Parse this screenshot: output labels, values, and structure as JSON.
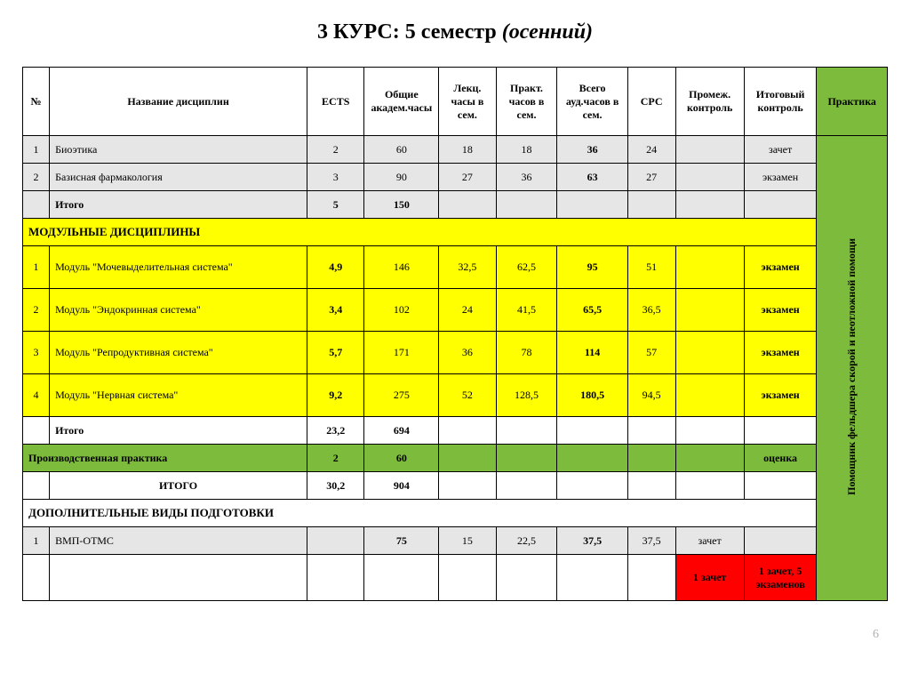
{
  "title_main": "3 КУРС: 5 семестр ",
  "title_italic": "(осенний)",
  "page_number": "6",
  "columns": {
    "num": "№",
    "name": "Название дисциплин",
    "ects": "ECTS",
    "acad": "Общие академ.часы",
    "lec": "Лекц. часы в сем.",
    "prac": "Практ. часов в сем.",
    "aud": "Всего ауд.часов в сем.",
    "crc": "СРС",
    "mid": "Промеж. контроль",
    "fin": "Итоговый контроль",
    "praktika": "Практика"
  },
  "rows": {
    "r1": {
      "num": "1",
      "name": "Биоэтика",
      "ects": "2",
      "acad": "60",
      "lec": "18",
      "prac": "18",
      "aud": "36",
      "crc": "24",
      "fin": "зачет"
    },
    "r2": {
      "num": "2",
      "name": "Базисная фармакология",
      "ects": "3",
      "acad": "90",
      "lec": "27",
      "prac": "36",
      "aud": "63",
      "crc": "27",
      "fin": "экзамен"
    },
    "subtotal1": {
      "name": "Итого",
      "ects": "5",
      "acad": "150"
    },
    "section_mod": "МОДУЛЬНЫЕ ДИСЦИПЛИНЫ",
    "m1": {
      "num": "1",
      "name": "Модуль \"Мочевыделительная система\"",
      "ects": "4,9",
      "acad": "146",
      "lec": "32,5",
      "prac": "62,5",
      "aud": "95",
      "crc": "51",
      "fin": "экзамен"
    },
    "m2": {
      "num": "2",
      "name": "Модуль \"Эндокринная система\"",
      "ects": "3,4",
      "acad": "102",
      "lec": "24",
      "prac": "41,5",
      "aud": "65,5",
      "crc": "36,5",
      "fin": "экзамен"
    },
    "m3": {
      "num": "3",
      "name": "Модуль \"Репродуктивная система\"",
      "ects": "5,7",
      "acad": "171",
      "lec": "36",
      "prac": "78",
      "aud": "114",
      "crc": "57",
      "fin": "экзамен"
    },
    "m4": {
      "num": "4",
      "name": "Модуль \"Нервная система\"",
      "ects": "9,2",
      "acad": "275",
      "lec": "52",
      "prac": "128,5",
      "aud": "180,5",
      "crc": "94,5",
      "fin": "экзамен"
    },
    "subtotal2": {
      "name": "Итого",
      "ects": "23,2",
      "acad": "694"
    },
    "prod": {
      "name": "Производственная практика",
      "ects": "2",
      "acad": "60",
      "fin": "оценка"
    },
    "grand": {
      "name": "ИТОГО",
      "ects": "30,2",
      "acad": "904"
    },
    "section_add": "ДОПОЛНИТЕЛЬНЫЕ ВИДЫ ПОДГОТОВКИ",
    "a1": {
      "num": "1",
      "name": "ВМП-ОТМС",
      "acad": "75",
      "lec": "15",
      "prac": "22,5",
      "aud": "37,5",
      "crc": "37,5",
      "mid": "зачет"
    },
    "red": {
      "mid": "1 зачет",
      "fin": "1 зачет, 5 экзаменов"
    }
  },
  "vertical_label": "Помощник фельдшера скорой и неотложной помощи"
}
